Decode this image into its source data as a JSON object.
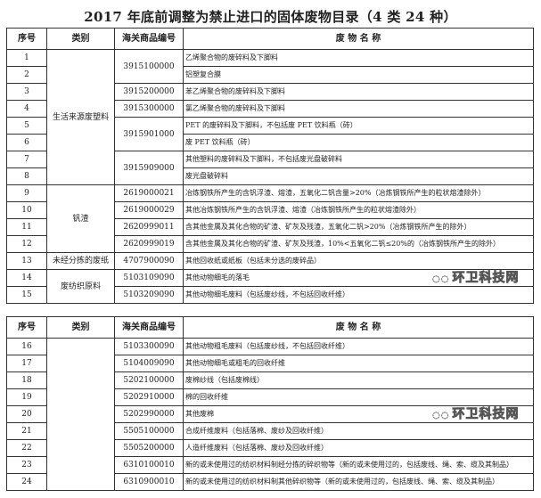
{
  "title": "2017 年底前调整为禁止进口的固体废物目录（4 类 24 种）",
  "headers": [
    "序号",
    "类别",
    "海关商品编号",
    "废 物 名 称"
  ],
  "watermark": "环卫科技网",
  "tables": [
    {
      "rows": [
        {
          "no": "1",
          "category": "生活来源废塑料",
          "cat_span": 8,
          "code": "3915100000",
          "code_span": 2,
          "name": "乙烯聚合物的废碎料及下脚料"
        },
        {
          "no": "2",
          "name": "铝塑复合膜"
        },
        {
          "no": "3",
          "code": "3915200000",
          "code_span": 1,
          "name": "苯乙烯聚合物的废碎料及下脚料"
        },
        {
          "no": "4",
          "code": "3915300000",
          "code_span": 1,
          "name": "氯乙烯聚合物的废碎料及下脚料"
        },
        {
          "no": "5",
          "code": "3915901000",
          "code_span": 2,
          "name": "PET 的废碎料及下脚料，不包括废 PET 饮料瓶（砖）"
        },
        {
          "no": "6",
          "name": "废 PET 饮料瓶（砖）"
        },
        {
          "no": "7",
          "code": "3915909000",
          "code_span": 2,
          "name": "其他塑料的废碎料及下脚料，不包括废光盘破碎料"
        },
        {
          "no": "8",
          "name": "废光盘破碎料"
        },
        {
          "no": "9",
          "category": "钒渣",
          "cat_span": 4,
          "code": "2619000021",
          "code_span": 1,
          "name": "冶炼钢铁所产生的含钒浮渣、熔渣，五氧化二钒含量>20%（冶炼钢铁所产生的粒状熔渣除外）"
        },
        {
          "no": "10",
          "code": "2619000029",
          "code_span": 1,
          "name": "其他冶炼钢铁所产生的含钒浮渣、熔渣（冶炼钢铁所产生的粒状熔渣除外）"
        },
        {
          "no": "11",
          "code": "2620999011",
          "code_span": 1,
          "name": "含其他金属及其化合物的矿渣、矿灰及残渣，五氧化二钒>20%（冶炼钢铁所产生的除外）"
        },
        {
          "no": "12",
          "code": "2620999019",
          "code_span": 1,
          "name": "含其他金属及其化合物的矿渣、矿灰及残渣，10%<五氧化二钒≤20%的（冶炼钢铁所产生的除外）"
        },
        {
          "no": "13",
          "category": "未经分拣的废纸",
          "cat_span": 1,
          "code": "4707900090",
          "code_span": 1,
          "name": "其他回收纸或纸板（包括未分选的废碎品）"
        },
        {
          "no": "14",
          "category": "废纺织原料",
          "cat_span": 2,
          "code": "5103109090",
          "code_span": 1,
          "name": "其他动物细毛的落毛"
        },
        {
          "no": "15",
          "code": "5103209090",
          "code_span": 1,
          "name": "其他动物细毛废料（包括废纱线，不包括回收纤维）"
        }
      ]
    },
    {
      "rows": [
        {
          "no": "16",
          "category": "",
          "cat_span": 9,
          "code": "5103300090",
          "code_span": 1,
          "name": "其他动物粗毛废料（包括废纱线，不包括回收纤维）"
        },
        {
          "no": "17",
          "code": "5104009090",
          "code_span": 1,
          "name": "其他动物细毛或粗毛的回收纤维"
        },
        {
          "no": "18",
          "code": "5202100000",
          "code_span": 1,
          "name": "废棉纱线（包括废棉线）"
        },
        {
          "no": "19",
          "code": "5202910000",
          "code_span": 1,
          "name": "棉的回收纤维"
        },
        {
          "no": "20",
          "code": "5202990000",
          "code_span": 1,
          "name": "其他废棉"
        },
        {
          "no": "21",
          "code": "5505100000",
          "code_span": 1,
          "name": "合成纤维废料（包括落棉、废纱及回收纤维）"
        },
        {
          "no": "22",
          "code": "5505200000",
          "code_span": 1,
          "name": "人造纤维废料（包括落棉、废纱及回收纤维）"
        },
        {
          "no": "23",
          "code": "6310100010",
          "code_span": 1,
          "name": "新的或未使用过的纺织材料制经分拣的碎织物等（新的或未使用过的，包括废线、绳、索、缆及其制品）"
        },
        {
          "no": "24",
          "code": "6310900010",
          "code_span": 1,
          "name": "新的或未使用过的纺织材料制其他碎织物等（新的或未使用过的，包括废线、绳、索、缆及其制品）"
        }
      ]
    }
  ]
}
